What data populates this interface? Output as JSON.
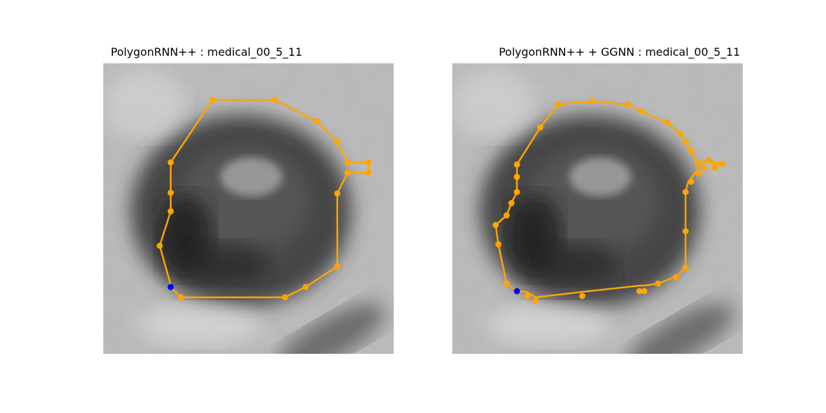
{
  "panels": [
    {
      "title": "PolygonRNN++ : medical_00_5_11",
      "polygon_color": "#FFA500",
      "start_vertex_color": "#0000FF"
    },
    {
      "title": "PolygonRNN++ + GGNN : medical_00_5_11",
      "polygon_color": "#FFA500",
      "start_vertex_color": "#0000FF"
    }
  ]
}
